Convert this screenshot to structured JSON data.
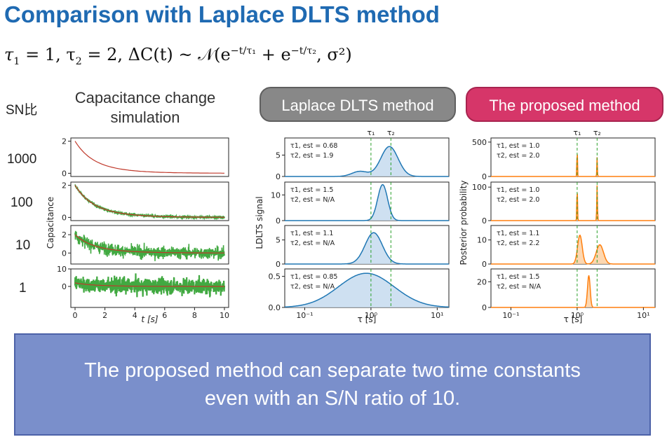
{
  "title": "Comparison with Laplace DLTS method",
  "formula": {
    "part1": "τ",
    "sub1": "1",
    "mid1": " = 1, τ",
    "sub2": "2",
    "mid2": " = 2, ΔC(t) ~ 𝒩(e",
    "exp1": "−t/τ₁",
    "mid3": " + e",
    "exp2": "−t/τ₂",
    "end": ", σ²)"
  },
  "sn_header": "SN比",
  "sn_levels": [
    "1000",
    "100",
    "10",
    "1"
  ],
  "column_titles": {
    "simulation_line1": "Capacitance change",
    "simulation_line2": "simulation",
    "laplace": "Laplace DLTS method",
    "proposed": "The proposed method"
  },
  "colors": {
    "title": "#1f6ab2",
    "laplace_curve": "#1f77b4",
    "laplace_fill": "#c6dbef",
    "proposed_curve": "#ff7f0e",
    "proposed_fill": "#fdd0a2",
    "noise": "#2ca02c",
    "decay": "#c0392b",
    "true_tau": "#2ca02c",
    "message_bg": "#7a8fcb"
  },
  "chart_data": [
    {
      "type": "line",
      "title": "",
      "xlabel": "t [s]",
      "ylabel": "Capacitance",
      "x_ticks": [
        "0",
        "2",
        "4",
        "6",
        "8",
        "10"
      ],
      "xlim": [
        0,
        10
      ],
      "series": [
        {
          "ylim": [
            -0.2,
            2.2
          ],
          "y_ticks": [
            "0",
            "2"
          ],
          "noise": 0.0
        },
        {
          "ylim": [
            -0.2,
            2.2
          ],
          "y_ticks": [
            "0",
            "2"
          ],
          "noise": 0.06
        },
        {
          "ylim": [
            -1.2,
            3.0
          ],
          "y_ticks": [
            "0",
            "2"
          ],
          "noise": 0.45
        },
        {
          "ylim": [
            -12,
            10
          ],
          "y_ticks": [
            "0",
            "10"
          ],
          "noise": 3.2
        }
      ]
    },
    {
      "type": "area",
      "title": "",
      "xlabel": "τ [s]",
      "ylabel": "LDLTS signal",
      "x_scale": "log",
      "xlim": [
        0.05,
        15
      ],
      "x_ticks": [
        "10⁻¹",
        "10⁰",
        "10¹"
      ],
      "markers": [
        "τ₁",
        "τ₂"
      ],
      "series": [
        {
          "ylim": [
            0,
            9
          ],
          "y_ticks": [
            "0",
            "5"
          ],
          "peaks": [
            [
              0.68,
              1.2,
              0.12
            ],
            [
              1.9,
              7.0,
              0.13
            ]
          ],
          "annot": [
            "τ1, est = 0.68",
            "τ2, est = 1.9"
          ]
        },
        {
          "ylim": [
            0,
            15
          ],
          "y_ticks": [
            "0",
            "10"
          ],
          "peaks": [
            [
              1.5,
              14.0,
              0.075
            ]
          ],
          "annot": [
            "τ1, est = 1.5",
            "τ2, est = N/A"
          ]
        },
        {
          "ylim": [
            0,
            8
          ],
          "y_ticks": [
            "0",
            "5"
          ],
          "peaks": [
            [
              1.1,
              6.5,
              0.13
            ]
          ],
          "annot": [
            "τ1, est = 1.1",
            "τ2, est = N/A"
          ]
        },
        {
          "ylim": [
            0,
            0.62
          ],
          "y_ticks": [
            "0.0",
            "0.5"
          ],
          "peaks": [
            [
              0.85,
              0.55,
              0.42
            ]
          ],
          "annot": [
            "τ1, est = 0.85",
            "τ2, est = N/A"
          ]
        }
      ]
    },
    {
      "type": "area",
      "title": "",
      "xlabel": "τ [s]",
      "ylabel": "Posterior probability",
      "x_scale": "log",
      "xlim": [
        0.05,
        15
      ],
      "x_ticks": [
        "10⁻¹",
        "10⁰",
        "10¹"
      ],
      "markers": [
        "τ₁",
        "τ₂"
      ],
      "series": [
        {
          "ylim": [
            0,
            560
          ],
          "y_ticks": [
            "0",
            "500"
          ],
          "peaks": [
            [
              1.0,
              480,
              0.004
            ],
            [
              2.0,
              280,
              0.004
            ]
          ],
          "annot": [
            "τ1, est = 1.0",
            "τ2, est = 2.0"
          ]
        },
        {
          "ylim": [
            0,
            115
          ],
          "y_ticks": [
            "0",
            "100"
          ],
          "peaks": [
            [
              1.0,
              105,
              0.005
            ],
            [
              2.0,
              105,
              0.005
            ]
          ],
          "annot": [
            "τ1, est = 1.0",
            "τ2, est = 2.0"
          ]
        },
        {
          "ylim": [
            0,
            16
          ],
          "y_ticks": [
            "0",
            "10"
          ],
          "peaks": [
            [
              1.1,
              12,
              0.035
            ],
            [
              2.2,
              8,
              0.055
            ]
          ],
          "annot": [
            "τ1, est = 1.1",
            "τ2, est = 2.2"
          ]
        },
        {
          "ylim": [
            0,
            30
          ],
          "y_ticks": [
            "0",
            "20"
          ],
          "peaks": [
            [
              1.5,
              25,
              0.02
            ]
          ],
          "annot": [
            "τ1, est = 1.5",
            "τ2, est = N/A"
          ]
        }
      ]
    }
  ],
  "message": {
    "line1": "The proposed method can separate two time constants",
    "line2": "even with an S/N ratio of 10."
  }
}
